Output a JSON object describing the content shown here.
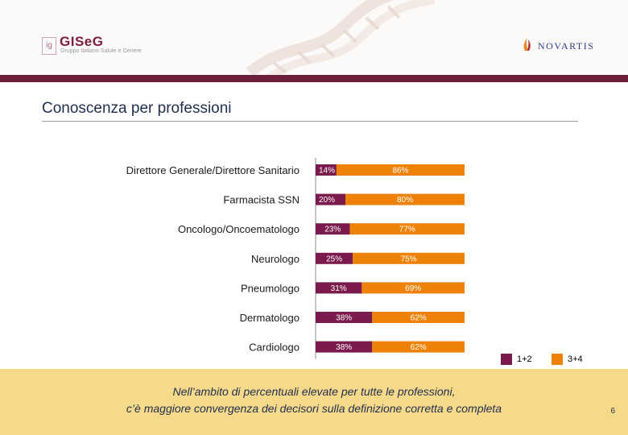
{
  "logos": {
    "left": {
      "name": "GISeG",
      "tagline": "Gruppo Italiano Salute e Genere"
    },
    "right": {
      "name": "NOVARTIS"
    }
  },
  "title": "Conoscenza per professioni",
  "chart_data": {
    "type": "bar",
    "orientation": "horizontal",
    "stacked": true,
    "categories": [
      "Direttore Generale/Direttore Sanitario",
      "Farmacista SSN",
      "Oncologo/Oncoematologo",
      "Neurologo",
      "Pneumologo",
      "Dermatologo",
      "Cardiologo"
    ],
    "series": [
      {
        "name": "1+2",
        "color": "#7b1a4c",
        "values": [
          14,
          20,
          23,
          25,
          31,
          38,
          38
        ],
        "labels": [
          "14%",
          "20%",
          "23%",
          "25%",
          "31%",
          "38%",
          "38%"
        ]
      },
      {
        "name": "3+4",
        "color": "#ee8209",
        "values": [
          86,
          80,
          77,
          75,
          69,
          62,
          62
        ],
        "labels": [
          "86%",
          "80%",
          "77%",
          "75%",
          "69%",
          "62%",
          "62%"
        ]
      }
    ],
    "xlim": [
      0,
      100
    ],
    "legend_position": "bottom-right",
    "grid": false
  },
  "footer": {
    "line1": "Nell’ambito di percentuali elevate per tutte le professioni,",
    "line2": "c’è maggiore convergenza dei decisori sulla definizione corretta e completa"
  },
  "page_number": "6"
}
